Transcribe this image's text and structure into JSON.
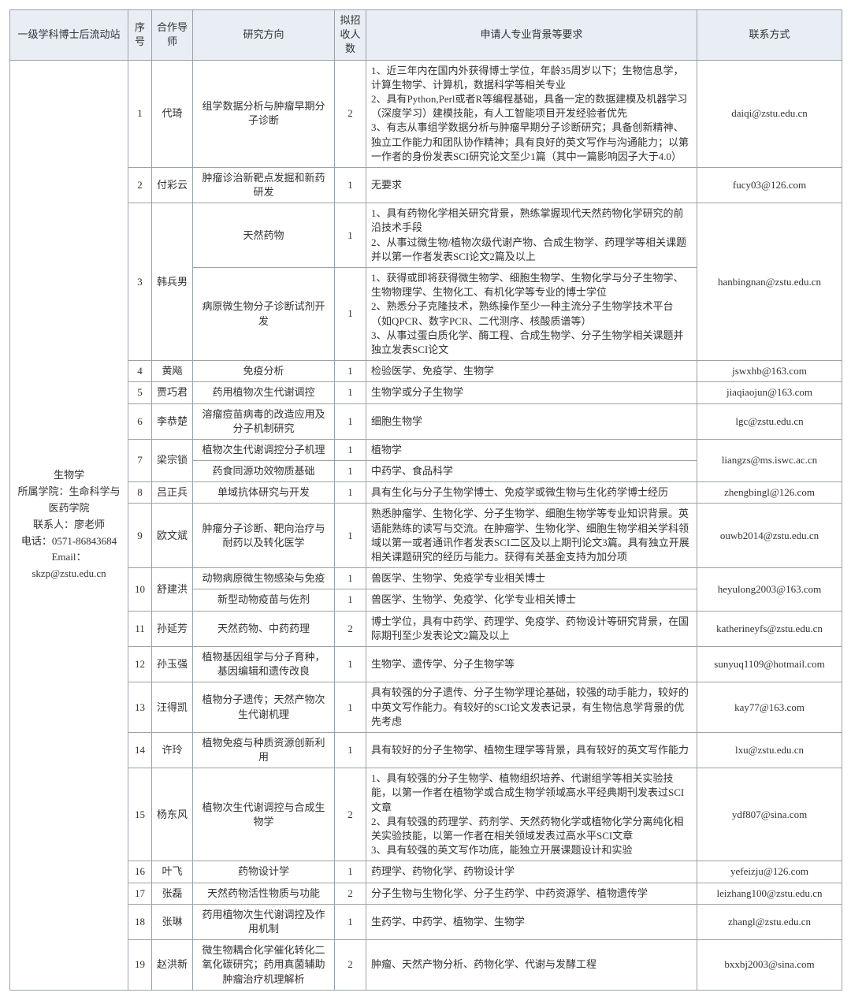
{
  "columns": [
    "一级学科博士后流动站",
    "序号",
    "合作导师",
    "研究方向",
    "拟招收人数",
    "申请人专业背景等要求",
    "联系方式"
  ],
  "station": {
    "discipline": "生物学",
    "school_label": "所属学院：",
    "school": "生命科学与医药学院",
    "contact_person_label": "联系人：",
    "contact_person": "廖老师",
    "phone_label": "电话：",
    "phone": "0571-86843684",
    "email_label": "Email：",
    "email": "skzp@zstu.edu.cn"
  },
  "rows": [
    {
      "seq": "1",
      "mentor": "代琦",
      "contact": "daiqi@zstu.edu.cn",
      "topics": [
        {
          "dir": "组学数据分析与肿瘤早期分子诊断",
          "num": "2",
          "req": "1、近三年内在国内外获得博士学位，年龄35周岁以下；生物信息学，计算生物学、计算机，数据科学等相关专业\n2、具有Python,Perl或者R等编程基础，具备一定的数据建模及机器学习（深度学习）建模技能，有人工智能项目开发经验者优先\n3、有志从事组学数据分析与肿瘤早期分子诊断研究；具备创新精神、独立工作能力和团队协作精神；具有良好的英文写作与沟通能力；以第一作者的身份发表SCI研究论文至少1篇（其中一篇影响因子大于4.0）"
        }
      ]
    },
    {
      "seq": "2",
      "mentor": "付彩云",
      "contact": "fucy03@126.com",
      "topics": [
        {
          "dir": "肿瘤诊治新靶点发掘和新药研发",
          "num": "1",
          "req": "无要求"
        }
      ]
    },
    {
      "seq": "3",
      "mentor": "韩兵男",
      "contact": "hanbingnan@zstu.edu.cn",
      "topics": [
        {
          "dir": "天然药物",
          "num": "1",
          "req": "1、具有药物化学相关研究背景，熟练掌握现代天然药物化学研究的前沿技术手段\n2、从事过微生物/植物次级代谢产物、合成生物学、药理学等相关课题并以第一作者发表SCI论文2篇及以上"
        },
        {
          "dir": "病原微生物分子诊断试剂开发",
          "num": "1",
          "req": "1、获得或即将获得微生物学、细胞生物学、生物化学与分子生物学、生物物理学、生物化工、有机化学等专业的博士学位\n2、熟悉分子克隆技术，熟练操作至少一种主流分子生物学技术平台（如QPCR、数字PCR、二代测序、核酸质谱等）\n3、从事过蛋白质化学、酶工程、合成生物学、分子生物学相关课题并独立发表SCI论文"
        }
      ]
    },
    {
      "seq": "4",
      "mentor": "黄飚",
      "contact": "jswxhb@163.com",
      "topics": [
        {
          "dir": "免疫分析",
          "num": "1",
          "req": "检验医学、免疫学、生物学"
        }
      ]
    },
    {
      "seq": "5",
      "mentor": "贾巧君",
      "contact": "jiaqiaojun@163.com",
      "topics": [
        {
          "dir": "药用植物次生代谢调控",
          "num": "1",
          "req": "生物学或分子生物学"
        }
      ]
    },
    {
      "seq": "6",
      "mentor": "李恭楚",
      "contact": "lgc@zstu.edu.cn",
      "topics": [
        {
          "dir": "溶瘤痘苗病毒的改造应用及分子机制研究",
          "num": "1",
          "req": "细胞生物学"
        }
      ]
    },
    {
      "seq": "7",
      "mentor": "梁宗锁",
      "contact": "liangzs@ms.iswc.ac.cn",
      "topics": [
        {
          "dir": "植物次生代谢调控分子机理",
          "num": "1",
          "req": "植物学"
        },
        {
          "dir": "药食同源功效物质基础",
          "num": "1",
          "req": "中药学、食品科学"
        }
      ]
    },
    {
      "seq": "8",
      "mentor": "吕正兵",
      "contact": "zhengbingl@126.com",
      "topics": [
        {
          "dir": "单域抗体研究与开发",
          "num": "1",
          "req": "具有生化与分子生物学博士、免疫学或微生物与生化药学博士经历"
        }
      ]
    },
    {
      "seq": "9",
      "mentor": "欧文斌",
      "contact": "ouwb2014@zstu.edu.cn",
      "topics": [
        {
          "dir": "肿瘤分子诊断、靶向治疗与耐药以及转化医学",
          "num": "1",
          "req": "熟悉肿瘤学、生物化学、分子生物学、细胞生物学等专业知识背景。英语能熟练的读写与交流。在肿瘤学、生物化学、细胞生物学相关学科领域以第一或者通讯作者发表SCI二区及以上期刊论文3篇。具有独立开展相关课题研究的经历与能力。获得有关基金支持为加分项"
        }
      ]
    },
    {
      "seq": "10",
      "mentor": "舒建洪",
      "contact": "heyulong2003@163.com",
      "topics": [
        {
          "dir": "动物病原微生物感染与免疫",
          "num": "1",
          "req": "兽医学、生物学、免疫学专业相关博士"
        },
        {
          "dir": "新型动物疫苗与佐剂",
          "num": "1",
          "req": "兽医学、生物学、免疫学、化学专业相关博士"
        }
      ]
    },
    {
      "seq": "11",
      "mentor": "孙延芳",
      "contact": "katherineyfs@zstu.edu.cn",
      "topics": [
        {
          "dir": "天然药物、中药药理",
          "num": "2",
          "req": "博士学位，具有中药学、药理学、免疫学、药物设计等研究背景，在国际期刊至少发表论文2篇及以上"
        }
      ]
    },
    {
      "seq": "12",
      "mentor": "孙玉强",
      "contact": "sunyuq1109@hotmail.com",
      "topics": [
        {
          "dir": "植物基因组学与分子育种，基因编辑和遗传改良",
          "num": "1",
          "req": "生物学、遗传学、分子生物学等"
        }
      ]
    },
    {
      "seq": "13",
      "mentor": "汪得凯",
      "contact": "kay77@163.com",
      "topics": [
        {
          "dir": "植物分子遗传；天然产物次生代谢机理",
          "num": "1",
          "req": "具有较强的分子遗传、分子生物学理论基础，较强的动手能力，较好的中英文写作能力。有较好的SCI论文发表记录，有生物信息学背景的优先考虑"
        }
      ]
    },
    {
      "seq": "14",
      "mentor": "许玲",
      "contact": "lxu@zstu.edu.cn",
      "topics": [
        {
          "dir": "植物免疫与种质资源创新利用",
          "num": "1",
          "req": "具有较好的分子生物学、植物生理学等背景，具有较好的英文写作能力"
        }
      ]
    },
    {
      "seq": "15",
      "mentor": "杨东风",
      "contact": "ydf807@sina.com",
      "topics": [
        {
          "dir": "植物次生代谢调控与合成生物学",
          "num": "2",
          "req": "1、具有较强的分子生物学、植物组织培养、代谢组学等相关实验技能，以第一作者在植物学或合成生物学领域高水平经典期刊发表过SCI文章\n2、具有较强的药理学、药剂学、天然药物化学或植物化学分离纯化相关实验技能，以第一作者在相关领域发表过高水平SCI文章\n3、具有较强的英文写作功底，能独立开展课题设计和实验"
        }
      ]
    },
    {
      "seq": "16",
      "mentor": "叶飞",
      "contact": "yefeizju@126.com",
      "topics": [
        {
          "dir": "药物设计学",
          "num": "1",
          "req": "药理学、药物化学、药物设计学"
        }
      ]
    },
    {
      "seq": "17",
      "mentor": "张磊",
      "contact": "leizhang100@zstu.edu.cn",
      "topics": [
        {
          "dir": "天然药物活性物质与功能",
          "num": "2",
          "req": "分子生物与生物化学、分子生药学、中药资源学、植物遗传学"
        }
      ]
    },
    {
      "seq": "18",
      "mentor": "张琳",
      "contact": "zhangl@zstu.edu.cn",
      "topics": [
        {
          "dir": "药用植物次生代谢调控及作用机制",
          "num": "1",
          "req": "生药学、中药学、植物学、生物学"
        }
      ]
    },
    {
      "seq": "19",
      "mentor": "赵洪新",
      "contact": "bxxbj2003@sina.com",
      "topics": [
        {
          "dir": "微生物耦合化学催化转化二氧化碳研究；药用真菌辅助肿瘤治疗机理解析",
          "num": "2",
          "req": "肿瘤、天然产物分析、药物化学、代谢与发酵工程"
        }
      ]
    }
  ]
}
